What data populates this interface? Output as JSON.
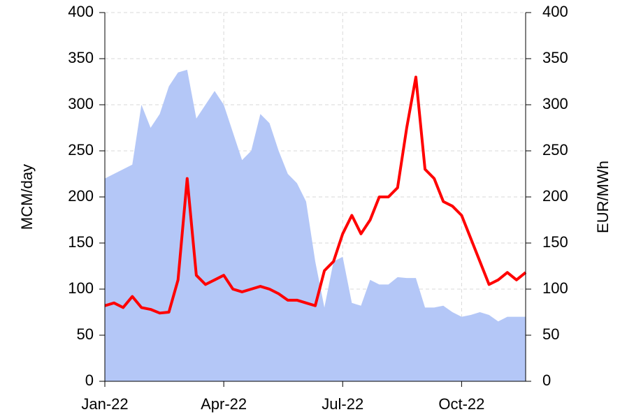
{
  "chart_data": {
    "type": "combo",
    "y_label": "MCM/day",
    "y2_label": "EUR/MWh",
    "categories": [
      "Jan-22",
      null,
      null,
      null,
      null,
      null,
      null,
      null,
      null,
      null,
      null,
      null,
      null,
      "Apr-22",
      null,
      null,
      null,
      null,
      null,
      null,
      null,
      null,
      null,
      null,
      null,
      null,
      "Jul-22",
      null,
      null,
      null,
      null,
      null,
      null,
      null,
      null,
      null,
      null,
      null,
      null,
      "Oct-22",
      null,
      null,
      null,
      null,
      null,
      null,
      null
    ],
    "series": [
      {
        "type": "area",
        "color": "#b4c7f7",
        "axis": "y",
        "values": [
          220,
          225,
          230,
          235,
          300,
          275,
          290,
          320,
          335,
          338,
          285,
          300,
          315,
          300,
          270,
          240,
          250,
          290,
          280,
          250,
          225,
          215,
          195,
          130,
          80,
          130,
          135,
          85,
          82,
          110,
          105,
          105,
          113,
          112,
          112,
          80,
          80,
          82,
          75,
          70,
          72,
          75,
          72,
          65,
          70,
          70,
          70
        ]
      },
      {
        "type": "line",
        "color": "#ff0000",
        "axis": "y2",
        "values": [
          82,
          85,
          80,
          92,
          80,
          78,
          74,
          75,
          110,
          220,
          115,
          105,
          110,
          115,
          100,
          97,
          100,
          103,
          100,
          95,
          88,
          88,
          85,
          82,
          120,
          130,
          160,
          180,
          160,
          175,
          200,
          200,
          210,
          275,
          330,
          230,
          220,
          195,
          190,
          180,
          155,
          130,
          105,
          110,
          118,
          110,
          118
        ]
      }
    ],
    "ylim": [
      0,
      400
    ],
    "yticks": [
      0,
      50,
      100,
      150,
      200,
      250,
      300,
      350,
      400
    ],
    "y2lim": [
      0,
      400
    ],
    "y2ticks": [
      0,
      50,
      100,
      150,
      200,
      250,
      300,
      350,
      400
    ],
    "grid": true
  }
}
